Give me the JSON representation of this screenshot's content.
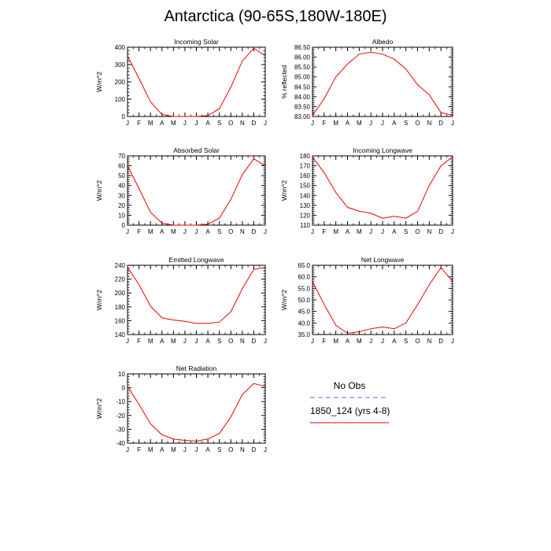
{
  "title": "Antarctica (90-65S,180W-180E)",
  "months": [
    "J",
    "F",
    "M",
    "A",
    "M",
    "J",
    "J",
    "A",
    "S",
    "O",
    "N",
    "D",
    "J"
  ],
  "colors": {
    "model": "#ee0000",
    "obs": "#6a6aee",
    "axis": "#000000"
  },
  "legend": {
    "obs_label": "No Obs",
    "model_label": "1850_124 (yrs 4-8)"
  },
  "chart_data": [
    {
      "type": "line",
      "title": "Incoming Solar",
      "ylabel": "W/m^2",
      "ylim": [
        0,
        400
      ],
      "yticks": [
        0,
        100,
        200,
        300,
        400
      ],
      "ytick_labels": [
        "0",
        "100",
        "200",
        "300",
        "400"
      ],
      "categories": [
        "J",
        "F",
        "M",
        "A",
        "M",
        "J",
        "J",
        "A",
        "S",
        "O",
        "N",
        "D",
        "J"
      ],
      "series": [
        {
          "values": [
            350,
            220,
            85,
            12,
            0,
            0,
            0,
            5,
            45,
            170,
            320,
            395,
            350
          ]
        }
      ]
    },
    {
      "type": "line",
      "title": "Albedo",
      "ylabel": "% reflected",
      "ylim": [
        83.0,
        86.5
      ],
      "yticks": [
        83.0,
        83.5,
        84.0,
        84.5,
        85.0,
        85.5,
        86.0,
        86.5
      ],
      "ytick_labels": [
        "83.00",
        "83.50",
        "84.00",
        "84.50",
        "85.00",
        "85.50",
        "86.00",
        "86.50"
      ],
      "categories": [
        "J",
        "F",
        "M",
        "A",
        "M",
        "J",
        "J",
        "A",
        "S",
        "O",
        "N",
        "D",
        "J"
      ],
      "series": [
        {
          "values": [
            83.05,
            83.9,
            85.0,
            85.65,
            86.15,
            86.25,
            86.15,
            85.9,
            85.4,
            84.6,
            84.1,
            83.2,
            83.05
          ]
        }
      ]
    },
    {
      "type": "line",
      "title": "Absorbed Solar",
      "ylabel": "W/m^2",
      "ylim": [
        0,
        70
      ],
      "yticks": [
        0,
        10,
        20,
        30,
        40,
        50,
        60,
        70
      ],
      "ytick_labels": [
        "0",
        "10",
        "20",
        "30",
        "40",
        "50",
        "60",
        "70"
      ],
      "categories": [
        "J",
        "F",
        "M",
        "A",
        "M",
        "J",
        "J",
        "A",
        "S",
        "O",
        "N",
        "D",
        "J"
      ],
      "series": [
        {
          "values": [
            60,
            37,
            13,
            2,
            0,
            0,
            0,
            1,
            7,
            26,
            51,
            67,
            60
          ]
        }
      ]
    },
    {
      "type": "line",
      "title": "Incoming Longwave",
      "ylabel": "W/m^2",
      "ylim": [
        110,
        180
      ],
      "yticks": [
        110,
        120,
        130,
        140,
        150,
        160,
        170,
        180
      ],
      "ytick_labels": [
        "110",
        "120",
        "130",
        "140",
        "150",
        "160",
        "170",
        "180"
      ],
      "categories": [
        "J",
        "F",
        "M",
        "A",
        "M",
        "J",
        "J",
        "A",
        "S",
        "O",
        "N",
        "D",
        "J"
      ],
      "series": [
        {
          "values": [
            179,
            163,
            143,
            128,
            124,
            122,
            117,
            119,
            117,
            124,
            150,
            170,
            179
          ]
        }
      ]
    },
    {
      "type": "line",
      "title": "Emitted Longwave",
      "ylabel": "W/m^2",
      "ylim": [
        140,
        240
      ],
      "yticks": [
        140,
        160,
        180,
        200,
        220,
        240
      ],
      "ytick_labels": [
        "140",
        "160",
        "180",
        "200",
        "220",
        "240"
      ],
      "categories": [
        "J",
        "F",
        "M",
        "A",
        "M",
        "J",
        "J",
        "A",
        "S",
        "O",
        "N",
        "D",
        "J"
      ],
      "series": [
        {
          "values": [
            237,
            212,
            181,
            164,
            161,
            159,
            156,
            156,
            158,
            173,
            206,
            234,
            237
          ]
        }
      ]
    },
    {
      "type": "line",
      "title": "Net Longwave",
      "ylabel": "W/m^2",
      "ylim": [
        35,
        65
      ],
      "yticks": [
        35,
        40,
        45,
        50,
        55,
        60,
        65
      ],
      "ytick_labels": [
        "35.0",
        "40.0",
        "45.0",
        "50.0",
        "55.0",
        "60.0",
        "65.0"
      ],
      "categories": [
        "J",
        "F",
        "M",
        "A",
        "M",
        "J",
        "J",
        "A",
        "S",
        "O",
        "N",
        "D",
        "J"
      ],
      "series": [
        {
          "values": [
            58,
            48,
            39,
            35.5,
            36.2,
            37.5,
            38.3,
            37.5,
            40,
            48,
            56.5,
            64,
            58
          ]
        }
      ]
    },
    {
      "type": "line",
      "title": "Net Radiation",
      "ylabel": "W/m^2",
      "ylim": [
        -40,
        10
      ],
      "yticks": [
        -40,
        -30,
        -20,
        -10,
        0,
        10
      ],
      "ytick_labels": [
        "-40",
        "-30",
        "-20",
        "-10",
        "0",
        "10"
      ],
      "categories": [
        "J",
        "F",
        "M",
        "A",
        "M",
        "J",
        "J",
        "A",
        "S",
        "O",
        "N",
        "D",
        "J"
      ],
      "series": [
        {
          "values": [
            1,
            -12,
            -26,
            -34,
            -37,
            -38,
            -38.5,
            -37,
            -33,
            -21,
            -5,
            3,
            1
          ]
        }
      ]
    }
  ]
}
